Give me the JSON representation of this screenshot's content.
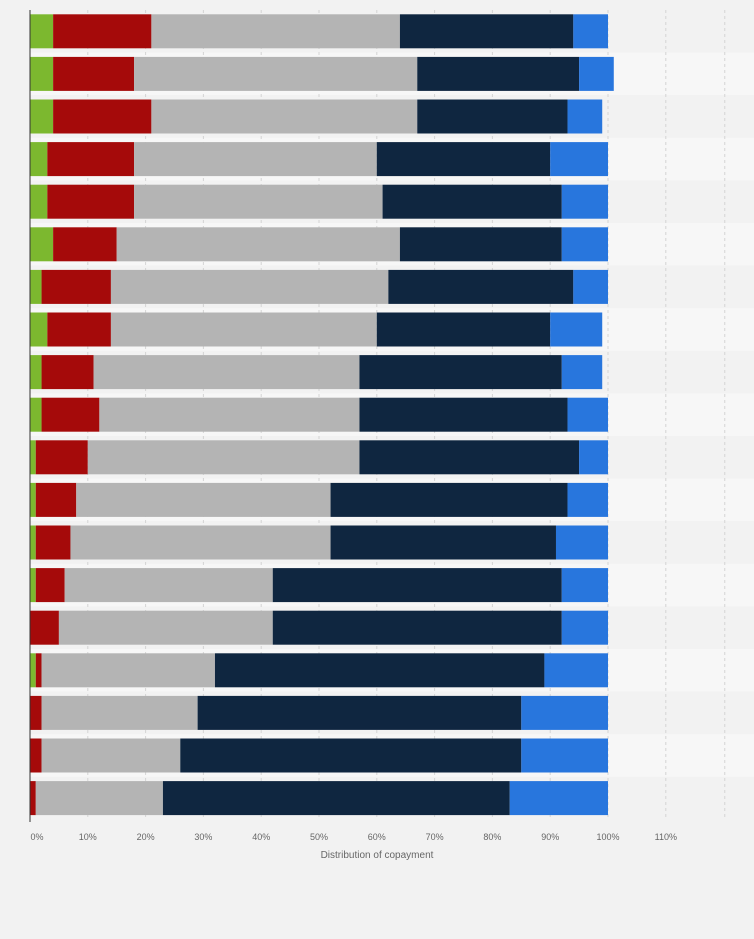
{
  "chart_data": {
    "type": "bar",
    "orientation": "horizontal",
    "stacked": true,
    "xlabel": "Distribution of copayment",
    "xlim": [
      0,
      120
    ],
    "xticks": [
      0,
      10,
      20,
      30,
      40,
      50,
      60,
      70,
      80,
      90,
      100,
      110
    ],
    "xtick_labels": [
      "0%",
      "10%",
      "20%",
      "30%",
      "40%",
      "50%",
      "60%",
      "70%",
      "80%",
      "90%",
      "100%",
      "110%"
    ],
    "grid": true,
    "legend": "none",
    "series": [
      {
        "color": "#7cb82f",
        "values": [
          4,
          4,
          4,
          3,
          3,
          4,
          2,
          3,
          2,
          2,
          1,
          1,
          1,
          1,
          0,
          1,
          0,
          0,
          0
        ]
      },
      {
        "color": "#a50a0a",
        "values": [
          17,
          14,
          17,
          15,
          15,
          11,
          12,
          11,
          9,
          10,
          9,
          7,
          6,
          5,
          5,
          1,
          2,
          2,
          1
        ]
      },
      {
        "color": "#b4b4b4",
        "values": [
          43,
          49,
          46,
          42,
          43,
          49,
          48,
          46,
          46,
          45,
          47,
          44,
          45,
          36,
          37,
          30,
          27,
          24,
          22
        ]
      },
      {
        "color": "#0f2640",
        "values": [
          30,
          28,
          26,
          30,
          31,
          28,
          32,
          30,
          35,
          36,
          38,
          41,
          39,
          50,
          50,
          57,
          56,
          59,
          60
        ]
      },
      {
        "color": "#2876dd",
        "values": [
          6,
          6,
          6,
          10,
          8,
          8,
          6,
          9,
          7,
          7,
          5,
          7,
          9,
          8,
          8,
          11,
          15,
          15,
          17
        ]
      }
    ]
  }
}
